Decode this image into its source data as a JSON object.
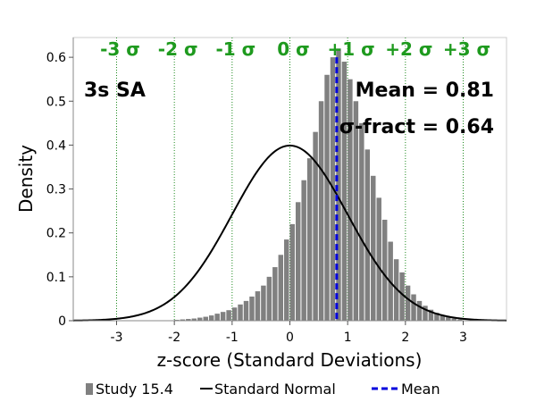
{
  "chart_data": {
    "type": "bar",
    "xlabel": "z-score (Standard Deviations)",
    "ylabel": "Density",
    "xlim": [
      -3.75,
      3.75
    ],
    "ylim": [
      0,
      0.645
    ],
    "x_ticks": [
      -3,
      -2,
      -1,
      0,
      1,
      2,
      3
    ],
    "y_ticks": [
      0,
      0.1,
      0.2,
      0.3,
      0.4,
      0.5,
      0.6
    ],
    "y_tick_labels": [
      "0",
      "0.1",
      "0.2",
      "0.3",
      "0.4",
      "0.5",
      "0.6"
    ],
    "sigma_lines": [
      -3,
      -2,
      -1,
      0,
      1,
      2,
      3
    ],
    "sigma_labels": [
      "-3 σ",
      "-2 σ",
      "-1 σ",
      "0 σ",
      "+1 σ",
      "+2 σ",
      "+3 σ"
    ],
    "annotations": {
      "case_label": "3s SA",
      "mean_text": "Mean = 0.81",
      "sigma_fract_text": "σ-fract = 0.64"
    },
    "histogram": {
      "name": "Study 15.4",
      "color": "#808080",
      "bin_width": 0.1,
      "bin_starts": [
        -2.0,
        -1.9,
        -1.8,
        -1.7,
        -1.6,
        -1.5,
        -1.4,
        -1.3,
        -1.2,
        -1.1,
        -1.0,
        -0.9,
        -0.8,
        -0.7,
        -0.6,
        -0.5,
        -0.4,
        -0.3,
        -0.2,
        -0.1,
        0.0,
        0.1,
        0.2,
        0.3,
        0.4,
        0.5,
        0.6,
        0.7,
        0.8,
        0.9,
        1.0,
        1.1,
        1.2,
        1.3,
        1.4,
        1.5,
        1.6,
        1.7,
        1.8,
        1.9,
        2.0,
        2.1,
        2.2,
        2.3,
        2.4,
        2.5,
        2.6,
        2.7,
        2.8,
        2.9
      ],
      "densities": [
        0.002,
        0.003,
        0.004,
        0.005,
        0.007,
        0.009,
        0.012,
        0.016,
        0.02,
        0.024,
        0.03,
        0.037,
        0.045,
        0.055,
        0.067,
        0.08,
        0.1,
        0.122,
        0.15,
        0.185,
        0.22,
        0.27,
        0.32,
        0.37,
        0.43,
        0.5,
        0.56,
        0.6,
        0.62,
        0.59,
        0.55,
        0.5,
        0.45,
        0.39,
        0.33,
        0.28,
        0.23,
        0.18,
        0.14,
        0.11,
        0.08,
        0.06,
        0.045,
        0.034,
        0.025,
        0.018,
        0.012,
        0.008,
        0.005,
        0.003
      ]
    },
    "normal_curve": {
      "name": "Standard Normal",
      "color": "#000000",
      "mean": 0,
      "sd": 1
    },
    "mean_line": {
      "name": "Mean",
      "x": 0.81,
      "color": "#0000dd"
    },
    "legend": {
      "placement": "bottom",
      "entries": [
        "Study 15.4",
        "Standard Normal",
        "Mean"
      ]
    }
  }
}
